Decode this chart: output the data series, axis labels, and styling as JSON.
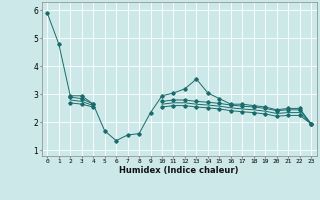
{
  "xlabel": "Humidex (Indice chaleur)",
  "background_color": "#cce8e8",
  "grid_color": "#ffffff",
  "line_color": "#1a6b6b",
  "xlim": [
    -0.5,
    23.5
  ],
  "ylim": [
    0.8,
    6.3
  ],
  "x": [
    0,
    1,
    2,
    3,
    4,
    5,
    6,
    7,
    8,
    9,
    10,
    11,
    12,
    13,
    14,
    15,
    16,
    17,
    18,
    19,
    20,
    21,
    22,
    23
  ],
  "xtick_labels": [
    "0",
    "1",
    "2",
    "3",
    "4",
    "5",
    "6",
    "7",
    "8",
    "9",
    "10",
    "11",
    "12",
    "13",
    "14",
    "15",
    "16",
    "17",
    "18",
    "19",
    "20",
    "21",
    "22",
    "23"
  ],
  "ytick_labels": [
    "1",
    "2",
    "3",
    "4",
    "5",
    "6"
  ],
  "series": {
    "top_curve": [
      5.9,
      4.8,
      2.95,
      2.95,
      2.65,
      1.7,
      1.35,
      1.55,
      1.6,
      2.35,
      2.95,
      3.05,
      3.2,
      3.55,
      3.05,
      2.85,
      2.65,
      2.65,
      2.6,
      2.55,
      2.45,
      2.5,
      2.5,
      1.95
    ],
    "upper_band": [
      null,
      null,
      2.9,
      2.85,
      2.65,
      null,
      null,
      null,
      null,
      null,
      2.75,
      2.8,
      2.8,
      2.75,
      2.72,
      2.68,
      2.62,
      2.58,
      2.55,
      2.5,
      2.42,
      2.45,
      2.45,
      1.95
    ],
    "lower_band": [
      null,
      null,
      2.7,
      2.65,
      2.55,
      null,
      null,
      null,
      null,
      null,
      2.55,
      2.6,
      2.6,
      2.55,
      2.52,
      2.48,
      2.42,
      2.38,
      2.35,
      2.3,
      2.22,
      2.25,
      2.25,
      1.95
    ],
    "mid_line": [
      null,
      null,
      2.8,
      2.75,
      2.6,
      null,
      null,
      null,
      null,
      null,
      2.65,
      2.7,
      2.7,
      2.65,
      2.62,
      2.58,
      2.52,
      2.48,
      2.45,
      2.4,
      2.32,
      2.35,
      2.35,
      1.95
    ]
  }
}
